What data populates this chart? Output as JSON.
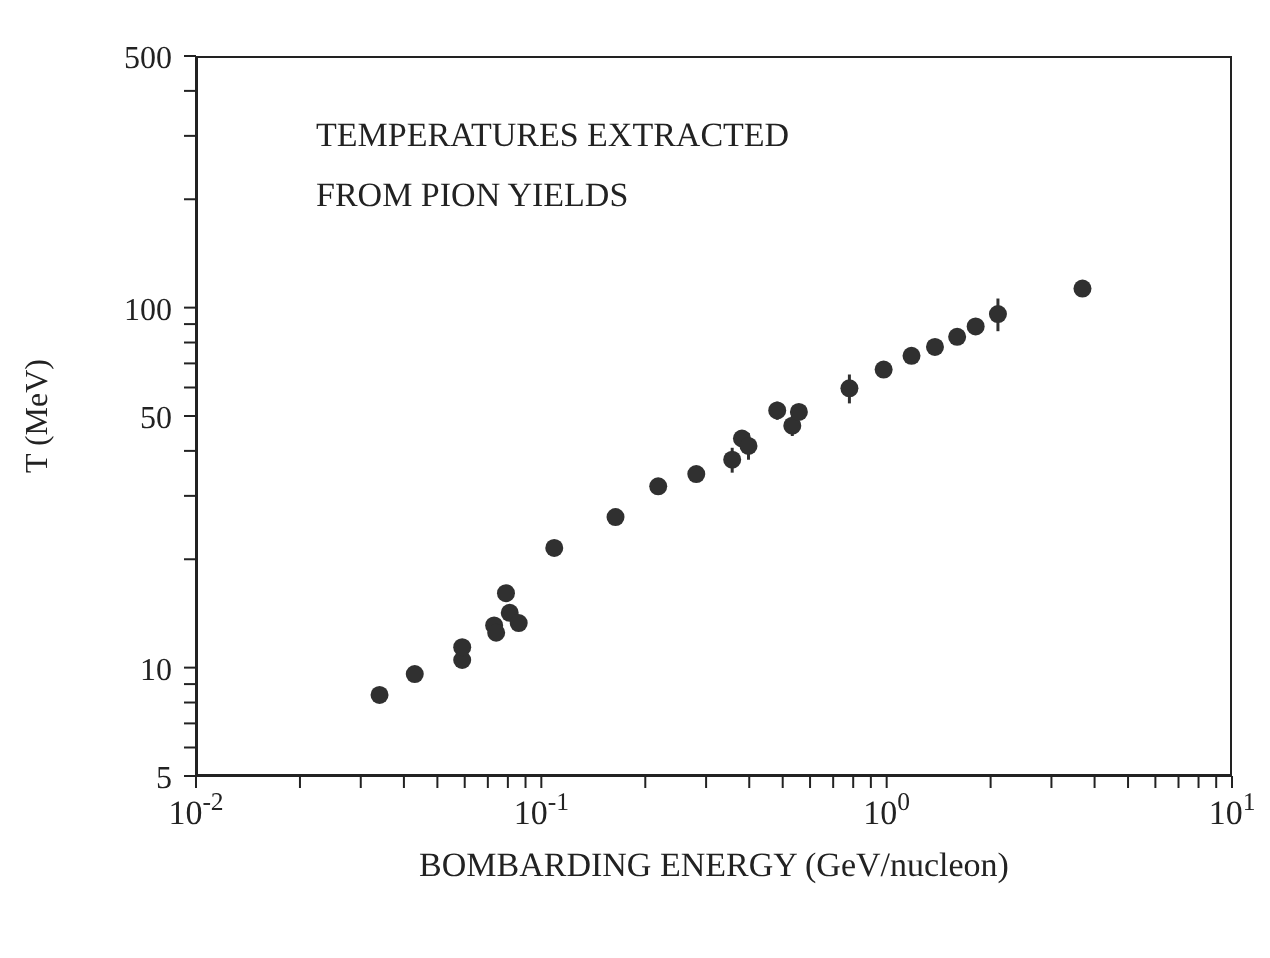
{
  "chart_data": {
    "type": "scatter",
    "xlabel": "BOMBARDING ENERGY (GeV/nucleon)",
    "ylabel": "T (MeV)",
    "annotations": [
      "TEMPERATURES EXTRACTED\nFROM PION YIELDS"
    ],
    "x": [
      0.034,
      0.043,
      0.059,
      0.059,
      0.073,
      0.074,
      0.079,
      0.081,
      0.086,
      0.109,
      0.164,
      0.218,
      0.281,
      0.357,
      0.381,
      0.398,
      0.482,
      0.533,
      0.557,
      0.78,
      0.98,
      1.18,
      1.38,
      1.6,
      1.81,
      2.1,
      3.69
    ],
    "values": [
      8.4,
      9.6,
      10.5,
      11.4,
      13.1,
      12.5,
      16.1,
      14.2,
      13.3,
      21.5,
      26.2,
      31.9,
      34.5,
      37.8,
      43.3,
      41.3,
      51.8,
      47,
      51.3,
      59.7,
      67.3,
      73.5,
      77.8,
      83,
      88.7,
      96,
      113
    ],
    "errors": [
      null,
      null,
      null,
      null,
      null,
      null,
      null,
      null,
      null,
      null,
      null,
      null,
      null,
      3,
      null,
      3.5,
      3,
      3,
      null,
      5.5,
      null,
      null,
      null,
      null,
      null,
      10,
      null
    ],
    "color": "#303030",
    "marker": "circle",
    "log": "xy",
    "xlim": [
      0.01,
      10
    ],
    "ylim": [
      5,
      500
    ],
    "xticks": [
      {
        "value": 0.01,
        "label": "10$^{-2}$"
      },
      {
        "value": 0.02,
        "label": null
      },
      {
        "value": 0.03,
        "label": null
      },
      {
        "value": 0.04,
        "label": null
      },
      {
        "value": 0.05,
        "label": null
      },
      {
        "value": 0.06,
        "label": null
      },
      {
        "value": 0.07,
        "label": null
      },
      {
        "value": 0.08,
        "label": null
      },
      {
        "value": 0.09,
        "label": null
      },
      {
        "value": 0.1,
        "label": "10$^{-1}$"
      },
      {
        "value": 0.2,
        "label": null
      },
      {
        "value": 0.3,
        "label": null
      },
      {
        "value": 0.4,
        "label": null
      },
      {
        "value": 0.5,
        "label": null
      },
      {
        "value": 0.6,
        "label": null
      },
      {
        "value": 0.7,
        "label": null
      },
      {
        "value": 0.8,
        "label": null
      },
      {
        "value": 0.9,
        "label": null
      },
      {
        "value": 1,
        "label": "10$^{0}$"
      },
      {
        "value": 2,
        "label": null
      },
      {
        "value": 3,
        "label": null
      },
      {
        "value": 4,
        "label": null
      },
      {
        "value": 5,
        "label": null
      },
      {
        "value": 6,
        "label": null
      },
      {
        "value": 7,
        "label": null
      },
      {
        "value": 8,
        "label": null
      },
      {
        "value": 9,
        "label": null
      },
      {
        "value": 10,
        "label": "10$^{1}$"
      }
    ],
    "yticks": [
      5,
      {
        "value": 6,
        "label": null
      },
      {
        "value": 7,
        "label": null
      },
      {
        "value": 8,
        "label": null
      },
      {
        "value": 9,
        "label": null
      },
      10,
      {
        "value": 20,
        "label": null
      },
      {
        "value": 30,
        "label": null
      },
      {
        "value": 40,
        "label": null
      },
      50,
      {
        "value": 60,
        "label": null
      },
      {
        "value": 70,
        "label": null
      },
      {
        "value": 80,
        "label": null
      },
      {
        "value": 90,
        "label": null
      },
      100,
      {
        "value": 200,
        "label": null
      },
      {
        "value": 300,
        "label": null
      },
      {
        "value": 400,
        "label": null
      },
      500
    ]
  }
}
